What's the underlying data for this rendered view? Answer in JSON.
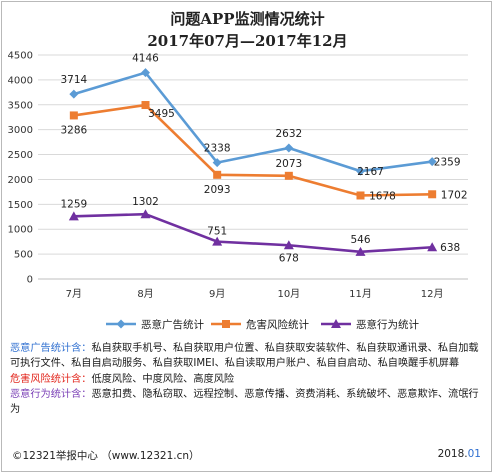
{
  "title_line1": "问题APP监测情况统计",
  "title_line2": "2017年07月—2017年12月",
  "chart_data": {
    "type": "line",
    "categories": [
      "7月",
      "8月",
      "9月",
      "10月",
      "11月",
      "12月"
    ],
    "ylim": [
      0,
      4500
    ],
    "yticks": [
      0,
      500,
      1000,
      1500,
      2000,
      2500,
      3000,
      3500,
      4000,
      4500
    ],
    "grid": true,
    "legend_position": "bottom",
    "series": [
      {
        "name": "恶意广告统计",
        "color": "#5b9bd5",
        "marker": "diamond",
        "values": [
          3714,
          4146,
          2338,
          2632,
          2167,
          2359
        ]
      },
      {
        "name": "危害风险统计",
        "color": "#ed7d31",
        "marker": "square",
        "values": [
          3286,
          3495,
          2093,
          2073,
          1678,
          1702
        ]
      },
      {
        "name": "恶意行为统计",
        "color": "#7030a0",
        "marker": "triangle",
        "values": [
          1259,
          1302,
          751,
          678,
          546,
          638
        ]
      }
    ]
  },
  "notes": {
    "ad_label": "恶意广告统计含：",
    "ad_text": "私自获取手机号、私自获取用户位置、私自获取安装软件、私自获取通讯录、私自加载可执行文件、私自自启动服务、私自获取IMEI、私自读取用户账户、私自自启动、私自唤醒手机屏幕",
    "risk_label": "危害风险统计含：",
    "risk_text": "低度风险、中度风险、高度风险",
    "behavior_label": "恶意行为统计含：",
    "behavior_text": "恶意扣费、隐私窃取、远程控制、恶意传播、资费消耗、系统破坏、恶意欺诈、流氓行为"
  },
  "footer": {
    "source": "©12321举报中心 （www.12321.cn）",
    "date_prefix": "2018.",
    "date_suffix": "01"
  }
}
